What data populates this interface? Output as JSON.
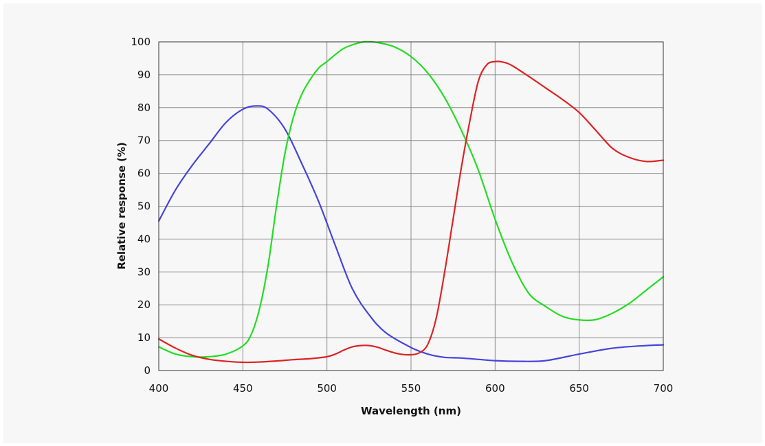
{
  "chart_data": {
    "type": "line",
    "title": "",
    "xlabel": "Wavelength (nm)",
    "ylabel": "Relative response (%)",
    "xlim": [
      400,
      700
    ],
    "ylim": [
      0,
      100
    ],
    "x_ticks": [
      400,
      450,
      500,
      550,
      600,
      650,
      700
    ],
    "y_ticks": [
      0,
      10,
      20,
      30,
      40,
      50,
      60,
      70,
      80,
      90,
      100
    ],
    "grid": true,
    "legend": "none",
    "series": [
      {
        "color": "#4444dd",
        "x": [
          400,
          410,
          420,
          430,
          440,
          450,
          458,
          465,
          475,
          485,
          495,
          505,
          515,
          525,
          535,
          550,
          560,
          570,
          580,
          600,
          615,
          630,
          650,
          670,
          690,
          700
        ],
        "y": [
          45.5,
          55,
          62.5,
          69,
          75.5,
          79.5,
          80.5,
          79.5,
          73.5,
          63,
          51.5,
          38,
          25,
          17,
          11.5,
          7,
          5,
          4,
          3.8,
          3,
          2.8,
          3,
          5,
          6.8,
          7.6,
          7.8
        ]
      },
      {
        "color": "#22dd22",
        "x": [
          400,
          410,
          420,
          430,
          440,
          450,
          455,
          460,
          465,
          470,
          475,
          480,
          485,
          490,
          495,
          500,
          510,
          520,
          525,
          530,
          540,
          550,
          560,
          570,
          580,
          590,
          600,
          610,
          620,
          630,
          640,
          650,
          660,
          670,
          680,
          690,
          700
        ],
        "y": [
          7.2,
          5,
          4.2,
          4.2,
          5,
          7.5,
          11,
          19,
          32,
          50,
          66,
          77,
          84,
          88.5,
          92,
          94,
          98,
          99.8,
          100,
          99.8,
          98.5,
          95.5,
          90.5,
          83,
          73,
          61,
          46,
          33,
          23.5,
          19.5,
          16.5,
          15.4,
          15.5,
          17.5,
          20.5,
          24.5,
          28.5
        ]
      },
      {
        "color": "#dd2222",
        "x": [
          400,
          410,
          420,
          430,
          440,
          450,
          460,
          470,
          480,
          490,
          500,
          505,
          510,
          515,
          520,
          525,
          530,
          535,
          540,
          545,
          550,
          555,
          560,
          565,
          570,
          575,
          580,
          585,
          590,
          595,
          600,
          605,
          610,
          620,
          630,
          640,
          650,
          660,
          670,
          680,
          690,
          700
        ],
        "y": [
          9.6,
          6.8,
          4.6,
          3.4,
          2.8,
          2.5,
          2.6,
          2.9,
          3.3,
          3.6,
          4.2,
          5,
          6.2,
          7.2,
          7.6,
          7.6,
          7.1,
          6.2,
          5.4,
          4.9,
          4.8,
          5.4,
          8,
          16,
          30,
          46,
          62,
          76,
          88,
          93,
          94,
          93.8,
          92.8,
          89.5,
          86,
          82.5,
          78.5,
          73,
          67.5,
          64.8,
          63.6,
          64
        ]
      }
    ]
  }
}
